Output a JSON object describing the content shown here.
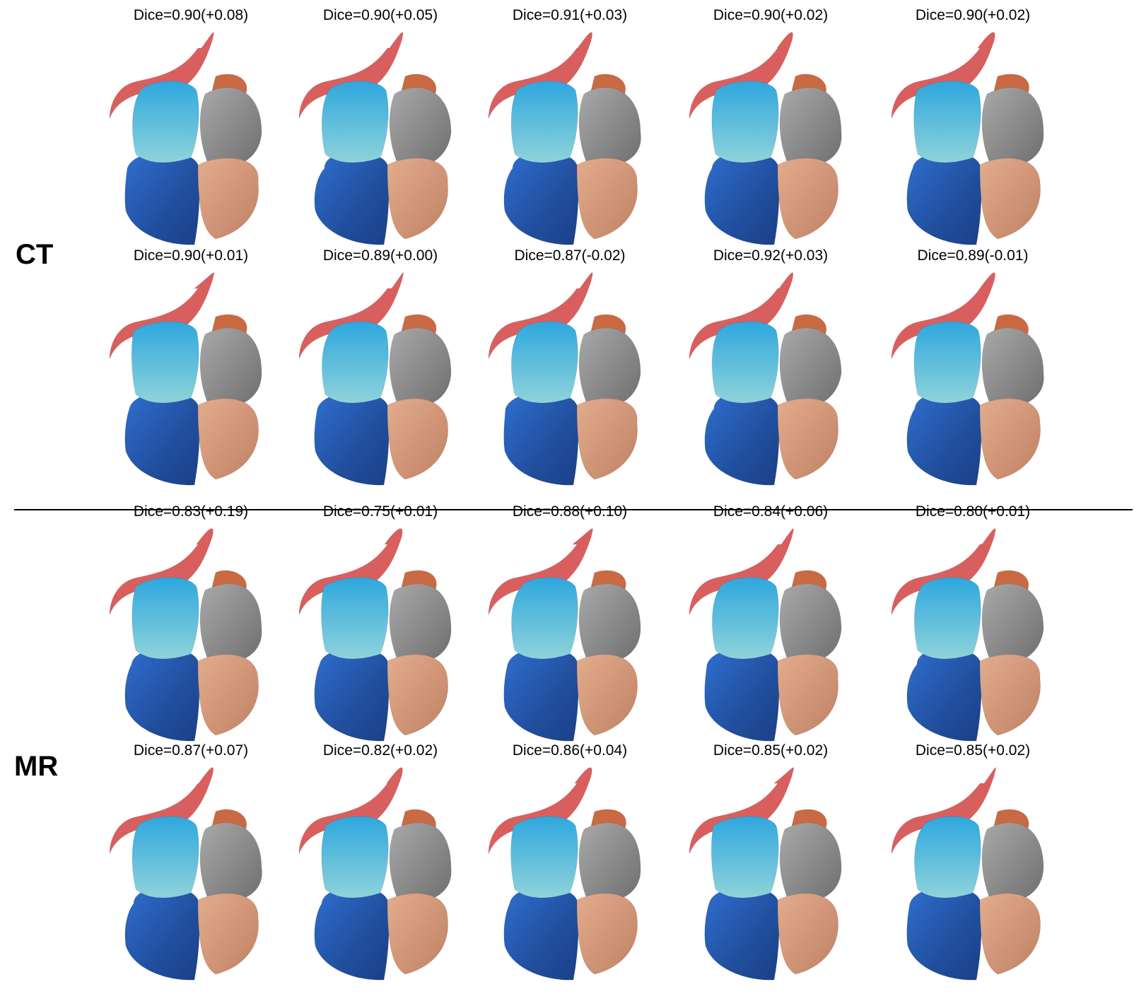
{
  "sections": [
    {
      "label": "CT",
      "rows": [
        [
          "Dice=0.90(+0.08)",
          "Dice=0.90(+0.05)",
          "Dice=0.91(+0.03)",
          "Dice=0.90(+0.02)",
          "Dice=0.90(+0.02)"
        ],
        [
          "Dice=0.90(+0.01)",
          "Dice=0.89(+0.00)",
          "Dice=0.87(-0.02)",
          "Dice=0.92(+0.03)",
          "Dice=0.89(-0.01)"
        ]
      ]
    },
    {
      "label": "MR",
      "rows": [
        [
          "Dice=0.83(+0.19)",
          "Dice=0.75(+0.01)",
          "Dice=0.88(+0.10)",
          "Dice=0.84(+0.06)",
          "Dice=0.80(+0.01)"
        ],
        [
          "Dice=0.87(+0.07)",
          "Dice=0.82(+0.02)",
          "Dice=0.86(+0.04)",
          "Dice=0.85(+0.02)",
          "Dice=0.85(+0.02)"
        ]
      ]
    }
  ],
  "colors": {
    "aorta": "#d95f5f",
    "left_atrium": "#38b3d9",
    "left_ventricle": "#2a5fb5",
    "right_atrium": "#8f8f8f",
    "right_ventricle": "#d79a7a",
    "pulmonary_artery": "#c96a43"
  },
  "icons": [
    "heart-mesh-render"
  ]
}
